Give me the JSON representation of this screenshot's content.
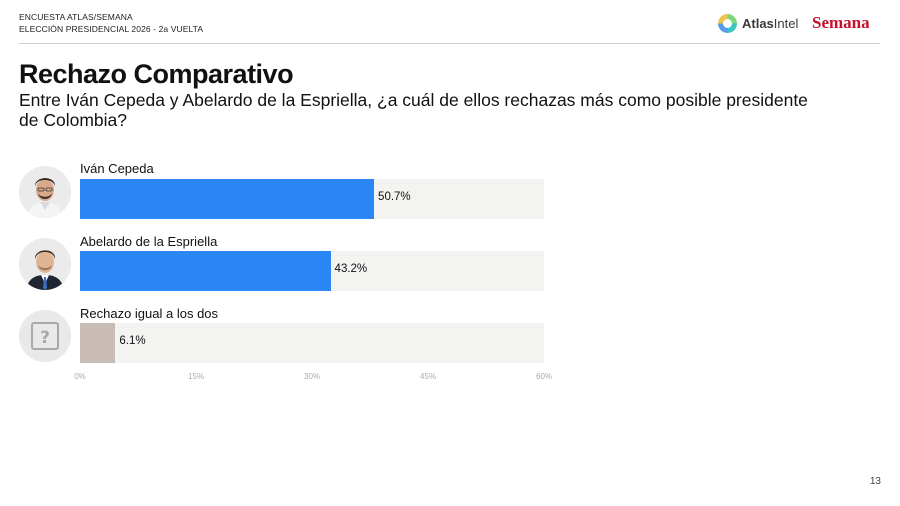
{
  "header": {
    "line1": "ENCUESTA ATLAS/SEMANA",
    "line2": "ELECCIÓN PRESIDENCIAL 2026 - 2a VUELTA",
    "brand_atlas_bold": "Atlas",
    "brand_atlas_light": "Intel",
    "brand_semana": "Semana"
  },
  "title": "Rechazo Comparativo",
  "subtitle": "Entre Iván Cepeda y Abelardo de la Espriella, ¿a cuál de ellos rechazas más como posible presidente de Colombia?",
  "page_number": "13",
  "colors": {
    "candidate_bar": "#2b87f5",
    "neutral_bar": "#c8bcb4",
    "track": "#f3f3f1"
  },
  "chart_data": {
    "type": "bar",
    "orientation": "horizontal",
    "categories": [
      "Iván Cepeda",
      "Abelardo de la Espriella",
      "Rechazo igual a los dos"
    ],
    "values": [
      50.7,
      43.2,
      6.1
    ],
    "value_labels": [
      "50.7%",
      "43.2%",
      "6.1%"
    ],
    "xlim": [
      0,
      80
    ],
    "xticks": [
      "0%",
      "15%",
      "30%",
      "45%",
      "60%"
    ],
    "grid": false,
    "legend": "none"
  }
}
